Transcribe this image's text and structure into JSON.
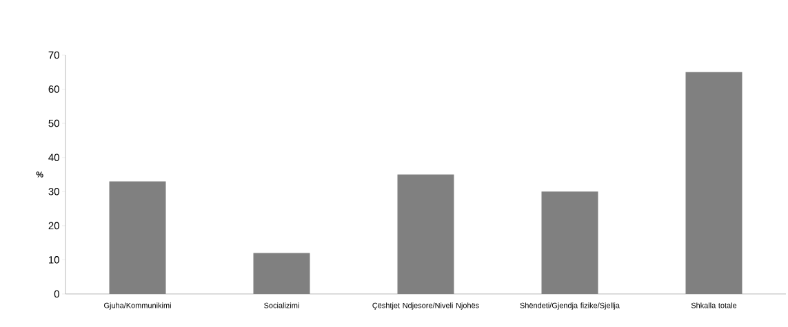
{
  "chart_data": {
    "type": "bar",
    "ylabel": "%",
    "categories": [
      "Gjuha/Kommunikimi",
      "Socializimi",
      "Çështjet Ndjesore/Niveli Njohës",
      "Shëndeti/Gjendja fizike/Sjellja",
      "Shkalla totale"
    ],
    "values": [
      33,
      12,
      35,
      30,
      65
    ],
    "color": "#808080",
    "ylim": [
      0,
      70
    ],
    "yticks": [
      0,
      10,
      20,
      30,
      40,
      50,
      60,
      70
    ],
    "grid": false
  }
}
